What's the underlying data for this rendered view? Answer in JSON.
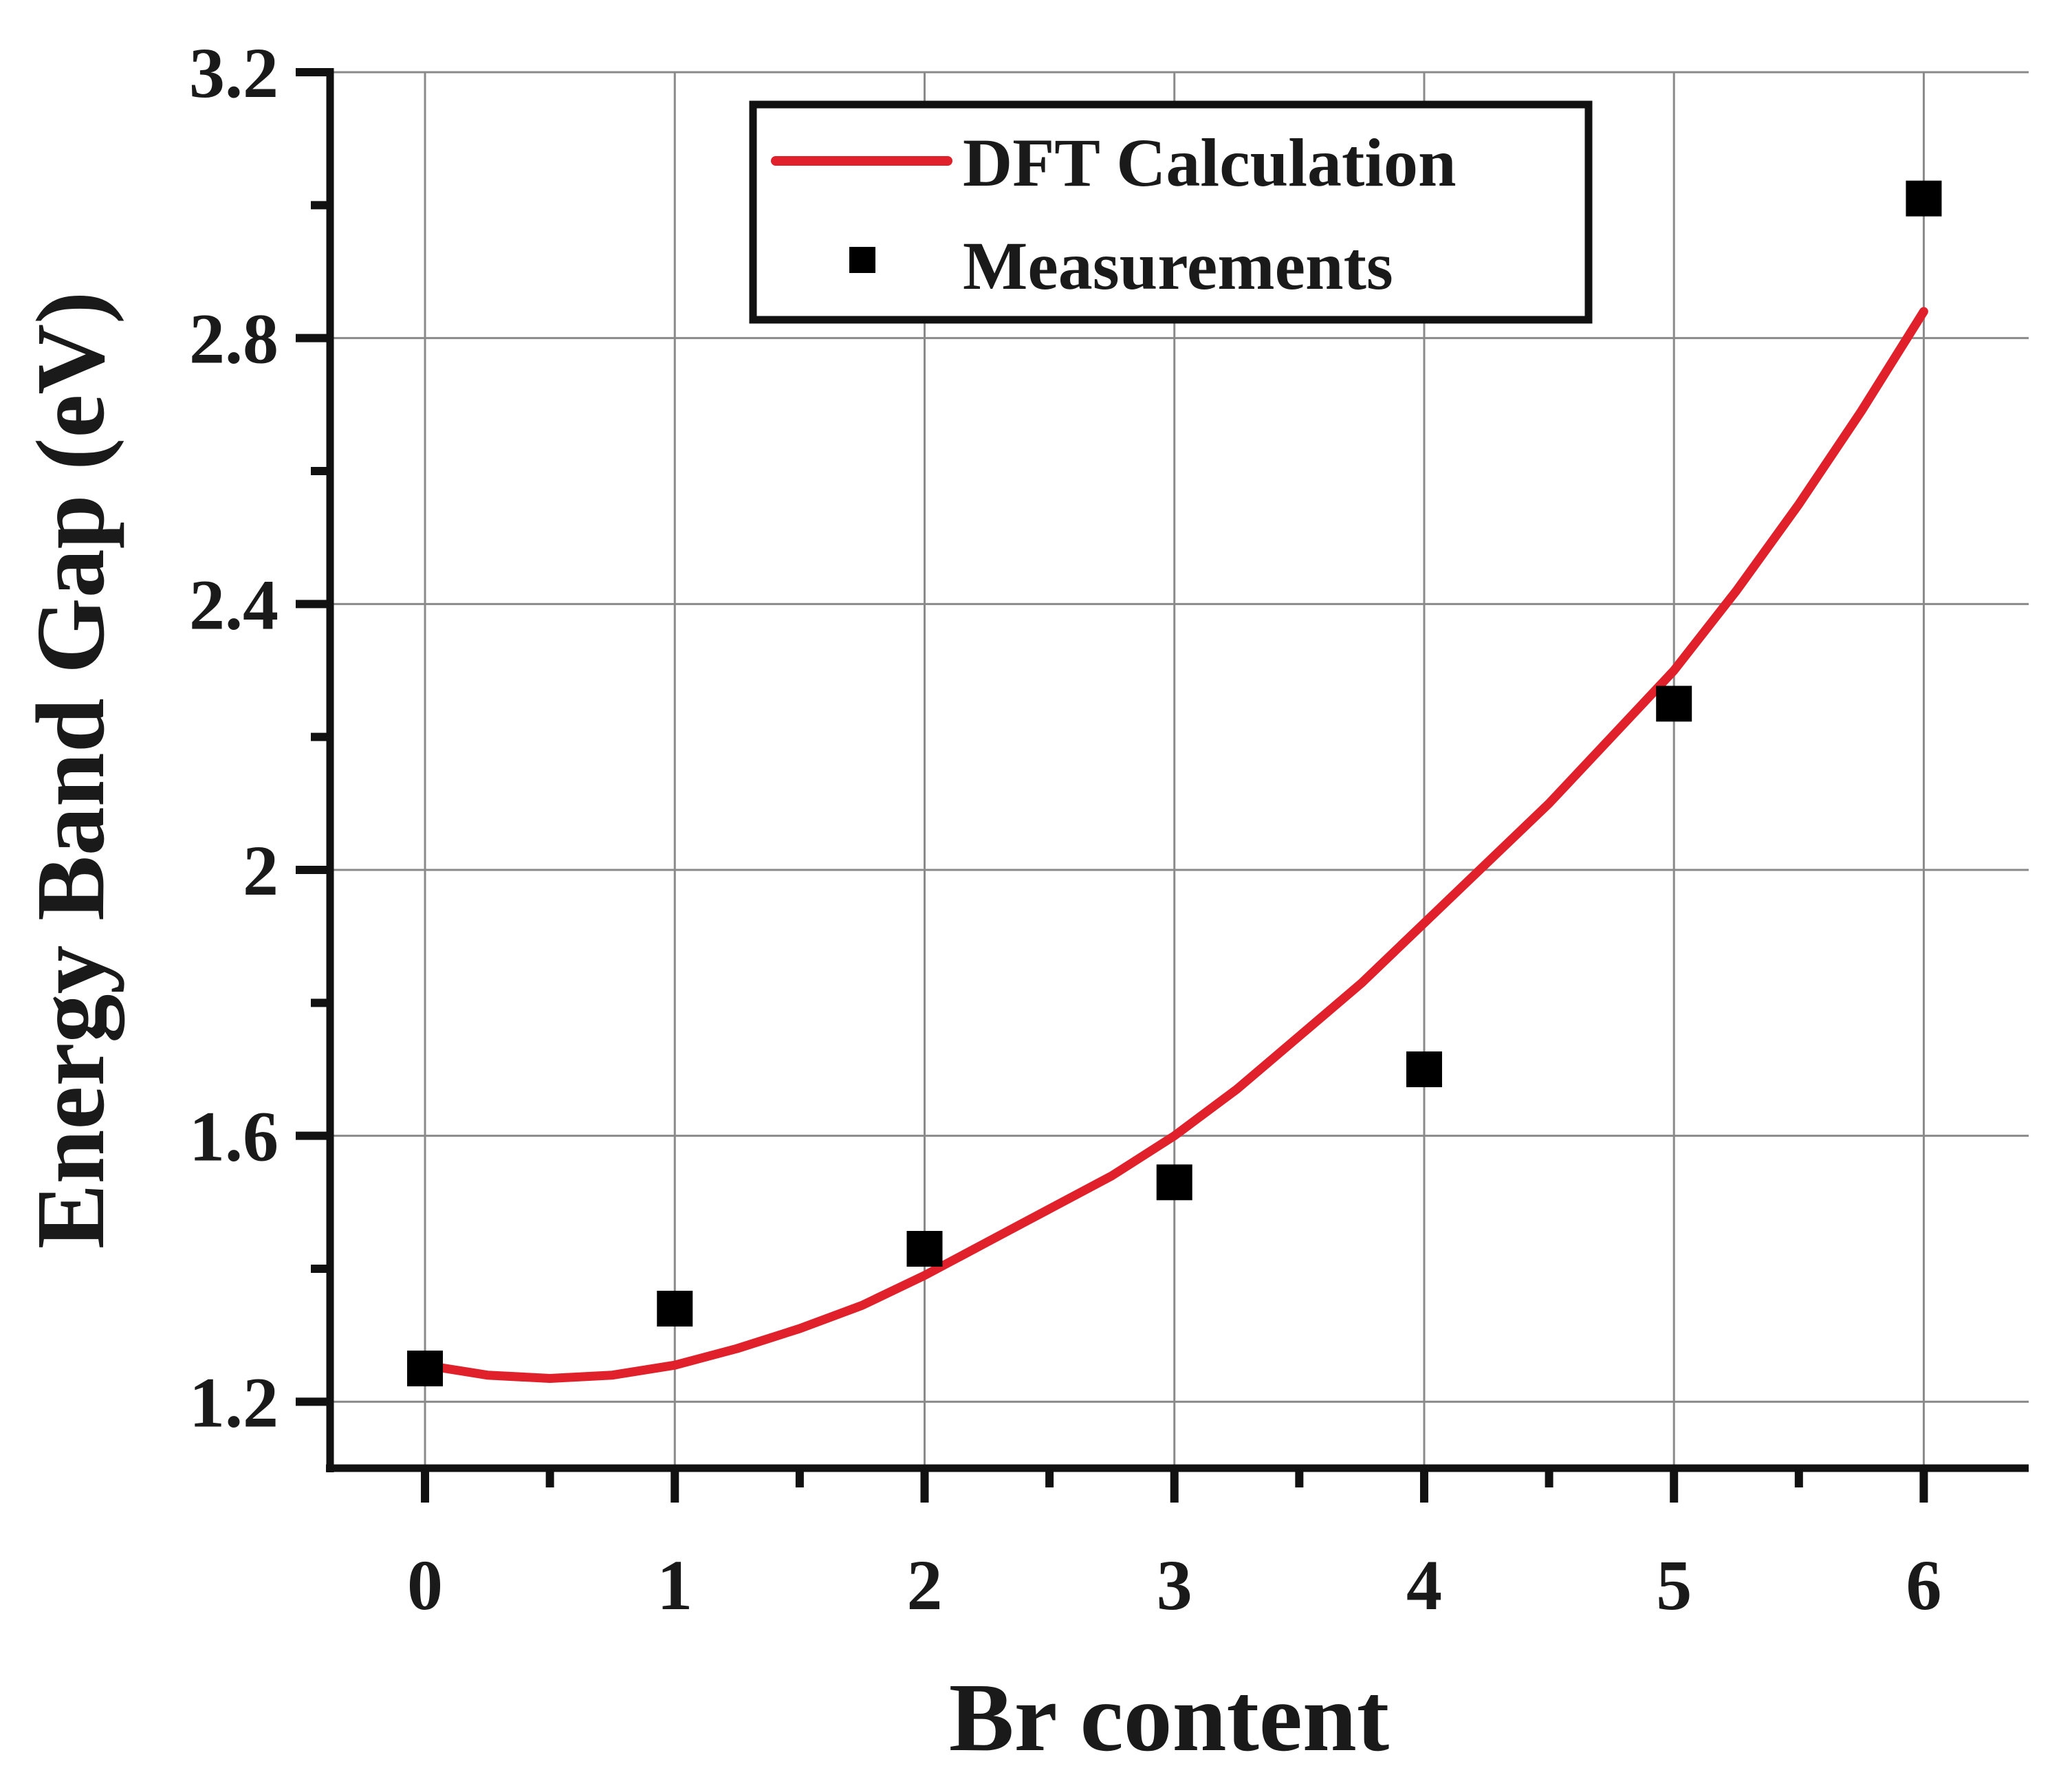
{
  "chart_data": {
    "type": "scatter",
    "title": "",
    "xlabel": "Br content",
    "ylabel": "Energy Band Gap (eV)",
    "xlim": [
      -0.38,
      6.42
    ],
    "ylim": [
      1.1,
      3.2
    ],
    "x_ticks": [
      0,
      1,
      2,
      3,
      4,
      5,
      6
    ],
    "x_tick_labels": [
      "0",
      "1",
      "2",
      "3",
      "4",
      "5",
      "6"
    ],
    "x_minor_ticks": [
      0.5,
      1.5,
      2.5,
      3.5,
      4.5,
      5.5
    ],
    "y_ticks": [
      1.2,
      1.6,
      2.0,
      2.4,
      2.8,
      3.2
    ],
    "y_tick_labels": [
      "1.2",
      "1.6",
      "2",
      "2.4",
      "2.8",
      "3.2"
    ],
    "y_minor_ticks": [
      1.4,
      1.8,
      2.2,
      2.6,
      3.0
    ],
    "grid": true,
    "legend_position": "top-center",
    "series": [
      {
        "name": "DFT Calculation",
        "kind": "line",
        "color": "#e0202a",
        "x": [
          0,
          0.25,
          0.5,
          0.75,
          1,
          1.25,
          1.5,
          1.75,
          2,
          2.25,
          2.5,
          2.75,
          3,
          3.25,
          3.5,
          3.75,
          4,
          4.25,
          4.5,
          4.75,
          5,
          5.25,
          5.5,
          5.75,
          6
        ],
        "y": [
          1.255,
          1.24,
          1.235,
          1.24,
          1.255,
          1.28,
          1.31,
          1.345,
          1.39,
          1.44,
          1.49,
          1.54,
          1.6,
          1.67,
          1.75,
          1.83,
          1.92,
          2.01,
          2.1,
          2.2,
          2.3,
          2.42,
          2.55,
          2.69,
          2.84
        ]
      },
      {
        "name": "Measurements",
        "kind": "scatter",
        "color": "#000000",
        "x": [
          0,
          1,
          2,
          3,
          4,
          5,
          6
        ],
        "y": [
          1.25,
          1.34,
          1.43,
          1.53,
          1.7,
          2.25,
          3.01
        ]
      }
    ]
  }
}
